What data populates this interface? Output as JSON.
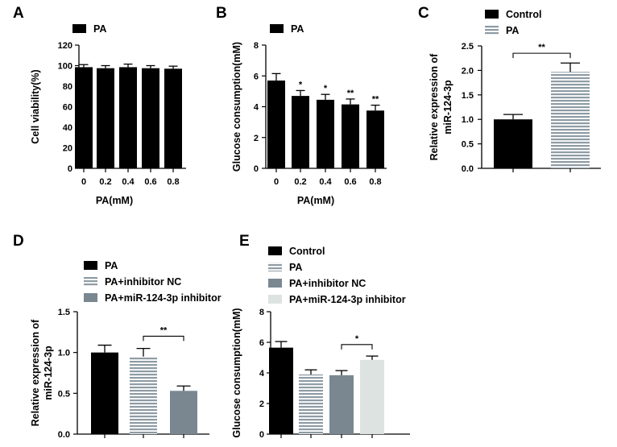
{
  "panels": [
    {
      "label": "A",
      "type": "bar",
      "legend": [
        {
          "name": "PA",
          "pattern": "black"
        }
      ],
      "ylabel": "Cell viability(%)",
      "xlabel": "PA(mM)",
      "ylim": [
        0,
        120
      ],
      "yticks": [
        "0",
        "20",
        "40",
        "60",
        "80",
        "100",
        "120"
      ],
      "categories": [
        "0",
        "0.2",
        "0.4",
        "0.6",
        "0.8"
      ],
      "values": [
        98.5,
        97.5,
        98.5,
        97.5,
        97.0
      ],
      "errors": [
        2.5,
        2.5,
        3.0,
        2.5,
        2.5
      ],
      "patterns": [
        "black",
        "black",
        "black",
        "black",
        "black"
      ],
      "sig_labels": [
        "",
        "",
        "",
        "",
        ""
      ],
      "brackets": []
    },
    {
      "label": "B",
      "type": "bar",
      "legend": [
        {
          "name": "PA",
          "pattern": "black"
        }
      ],
      "ylabel": "Glucose consumption(mM)",
      "xlabel": "PA(mM)",
      "ylim": [
        0,
        8
      ],
      "yticks": [
        "0",
        "2",
        "4",
        "6",
        "8"
      ],
      "categories": [
        "0",
        "0.2",
        "0.4",
        "0.6",
        "0.8"
      ],
      "values": [
        5.7,
        4.7,
        4.45,
        4.15,
        3.75
      ],
      "errors": [
        0.45,
        0.35,
        0.35,
        0.35,
        0.35
      ],
      "patterns": [
        "black",
        "black",
        "black",
        "black",
        "black"
      ],
      "sig_labels": [
        "",
        "*",
        "*",
        "**",
        "**"
      ],
      "brackets": []
    },
    {
      "label": "C",
      "type": "bar",
      "legend": [
        {
          "name": "Control",
          "pattern": "black"
        },
        {
          "name": "PA",
          "pattern": "striped"
        }
      ],
      "ylabel": "Relative expression of",
      "ylabel2": "miR-124-3p",
      "xlabel": "",
      "ylim": [
        0,
        2.5
      ],
      "yticks": [
        "0.0",
        "0.5",
        "1.0",
        "1.5",
        "2.0",
        "2.5"
      ],
      "categories": [
        "",
        ""
      ],
      "values": [
        1.0,
        1.97
      ],
      "errors": [
        0.1,
        0.18
      ],
      "patterns": [
        "black",
        "striped"
      ],
      "sig_labels": [
        "",
        ""
      ],
      "brackets": [
        {
          "from": 0,
          "to": 1,
          "label": "**",
          "y": 2.35
        }
      ]
    },
    {
      "label": "D",
      "type": "bar",
      "legend": [
        {
          "name": "PA",
          "pattern": "black"
        },
        {
          "name": "PA+inhibitor NC",
          "pattern": "striped"
        },
        {
          "name": "PA+miR-124-3p inhibitor",
          "pattern": "gray"
        }
      ],
      "ylabel": "Relative expression of",
      "ylabel2": "miR-124-3p",
      "xlabel": "",
      "ylim": [
        0,
        1.5
      ],
      "yticks": [
        "0.0",
        "0.5",
        "1.0",
        "1.5"
      ],
      "categories": [
        "",
        "",
        ""
      ],
      "values": [
        1.0,
        0.95,
        0.53
      ],
      "errors": [
        0.09,
        0.1,
        0.06
      ],
      "patterns": [
        "black",
        "striped",
        "gray"
      ],
      "sig_labels": [
        "",
        "",
        ""
      ],
      "brackets": [
        {
          "from": 1,
          "to": 2,
          "label": "**",
          "y": 1.2
        }
      ]
    },
    {
      "label": "E",
      "type": "bar",
      "legend": [
        {
          "name": "Control",
          "pattern": "black"
        },
        {
          "name": "PA",
          "pattern": "striped"
        },
        {
          "name": "PA+inhibitor NC",
          "pattern": "gray"
        },
        {
          "name": "PA+miR-124-3p inhibitor",
          "pattern": "light"
        }
      ],
      "ylabel": "Glucose consumption(mM)",
      "xlabel": "",
      "ylim": [
        0,
        8
      ],
      "yticks": [
        "0",
        "2",
        "4",
        "6",
        "8"
      ],
      "categories": [
        "",
        "",
        "",
        ""
      ],
      "values": [
        5.65,
        3.9,
        3.85,
        4.85
      ],
      "errors": [
        0.4,
        0.3,
        0.3,
        0.25
      ],
      "patterns": [
        "black",
        "striped",
        "gray",
        "light"
      ],
      "sig_labels": [
        "",
        "",
        "",
        ""
      ],
      "brackets": [
        {
          "from": 2,
          "to": 3,
          "label": "*",
          "y": 5.85
        }
      ]
    }
  ],
  "chart_data": [
    {
      "type": "bar",
      "title": "A",
      "categories": [
        "0",
        "0.2",
        "0.4",
        "0.6",
        "0.8"
      ],
      "series": [
        {
          "name": "PA",
          "values": [
            98.5,
            97.5,
            98.5,
            97.5,
            97.0
          ]
        }
      ],
      "xlabel": "PA(mM)",
      "ylabel": "Cell viability(%)",
      "ylim": [
        0,
        120
      ]
    },
    {
      "type": "bar",
      "title": "B",
      "categories": [
        "0",
        "0.2",
        "0.4",
        "0.6",
        "0.8"
      ],
      "series": [
        {
          "name": "PA",
          "values": [
            5.7,
            4.7,
            4.45,
            4.15,
            3.75
          ]
        }
      ],
      "xlabel": "PA(mM)",
      "ylabel": "Glucose consumption(mM)",
      "ylim": [
        0,
        8
      ]
    },
    {
      "type": "bar",
      "title": "C",
      "categories": [
        "Control",
        "PA"
      ],
      "values": [
        1.0,
        1.97
      ],
      "ylabel": "Relative expression of miR-124-3p",
      "ylim": [
        0,
        2.5
      ]
    },
    {
      "type": "bar",
      "title": "D",
      "categories": [
        "PA",
        "PA+inhibitor NC",
        "PA+miR-124-3p inhibitor"
      ],
      "values": [
        1.0,
        0.95,
        0.53
      ],
      "ylabel": "Relative expression of miR-124-3p",
      "ylim": [
        0,
        1.5
      ]
    },
    {
      "type": "bar",
      "title": "E",
      "categories": [
        "Control",
        "PA",
        "PA+inhibitor NC",
        "PA+miR-124-3p inhibitor"
      ],
      "values": [
        5.65,
        3.9,
        3.85,
        4.85
      ],
      "ylabel": "Glucose consumption(mM)",
      "ylim": [
        0,
        8
      ]
    }
  ],
  "colors": {
    "black": "#000000",
    "gray": "#7a8791",
    "light": "#dde3e0",
    "stripe_bg": "#8e9ba4",
    "stripe_line": "#ffffff"
  }
}
